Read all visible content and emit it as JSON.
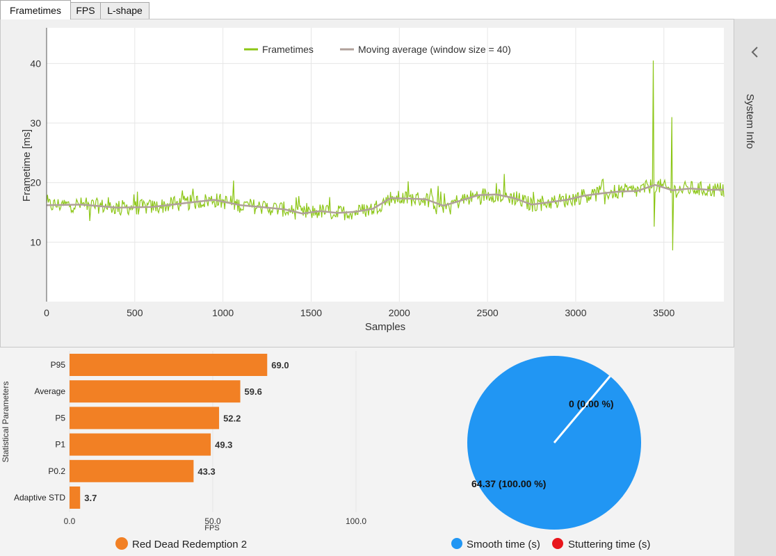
{
  "tabs": [
    {
      "label": "Frametimes",
      "active": true
    },
    {
      "label": "FPS",
      "active": false
    },
    {
      "label": "L-shape",
      "active": false
    }
  ],
  "sidebar": {
    "label": "System Info"
  },
  "frametime_chart": {
    "chart_data": {
      "type": "line",
      "xlabel": "Samples",
      "ylabel": "Frametime [ms]",
      "xlim": [
        0,
        3840
      ],
      "ylim": [
        0,
        46
      ],
      "x_ticks": [
        "0",
        "500",
        "1000",
        "1500",
        "2000",
        "2500",
        "3000",
        "3500"
      ],
      "x_tick_values": [
        0,
        500,
        1000,
        1500,
        2000,
        2500,
        3000,
        3500
      ],
      "y_ticks": [
        "10",
        "20",
        "30",
        "40"
      ],
      "y_tick_values": [
        10,
        20,
        30,
        40
      ],
      "legend": [
        {
          "name": "Frametimes",
          "color": "#8cc616"
        },
        {
          "name": "Moving average (window size = 40)",
          "color": "#b0a09a"
        }
      ],
      "moving_average": {
        "x": [
          0,
          200,
          400,
          600,
          800,
          950,
          1100,
          1250,
          1350,
          1450,
          1550,
          1650,
          1750,
          1850,
          1950,
          2050,
          2150,
          2250,
          2350,
          2450,
          2550,
          2650,
          2750,
          2850,
          2950,
          3050,
          3150,
          3250,
          3350,
          3450,
          3550,
          3650,
          3750,
          3840
        ],
        "y": [
          16.2,
          16.3,
          15.8,
          15.9,
          16.6,
          17.1,
          16.2,
          15.8,
          15.5,
          14.8,
          15.2,
          14.9,
          15.1,
          15.6,
          17.4,
          17.3,
          17.2,
          16.1,
          17.0,
          17.9,
          18.0,
          17.4,
          16.3,
          16.7,
          17.1,
          17.8,
          18.2,
          18.5,
          18.6,
          19.6,
          18.7,
          19.0,
          18.8,
          18.8
        ]
      },
      "spikes": [
        {
          "x": 3440,
          "y": 40.5
        },
        {
          "x": 3445,
          "y": 12.6
        },
        {
          "x": 3545,
          "y": 31.0
        },
        {
          "x": 3550,
          "y": 8.6
        }
      ]
    }
  },
  "stats_chart": {
    "chart_data": {
      "type": "bar",
      "orientation": "horizontal",
      "ylabel": "Statistical Parameters",
      "xlabel": "FPS",
      "xlim": [
        0,
        100
      ],
      "x_ticks": [
        "0.0",
        "50.0",
        "100.0"
      ],
      "x_tick_values": [
        0,
        50,
        100
      ],
      "categories": [
        "P95",
        "Average",
        "P5",
        "P1",
        "P0.2",
        "Adaptive STD"
      ],
      "values": [
        69.0,
        59.6,
        52.2,
        49.3,
        43.3,
        3.7
      ],
      "labels": [
        "69.0",
        "59.6",
        "52.2",
        "49.3",
        "43.3",
        "3.7"
      ],
      "color": "#f28024",
      "legend": [
        {
          "name": "Red Dead Redemption 2",
          "color": "#f28024"
        }
      ]
    }
  },
  "pie_chart": {
    "chart_data": {
      "type": "pie",
      "slices": [
        {
          "name": "Smooth time (s)",
          "value": 64.37,
          "label": "64.37 (100.00 %)",
          "color": "#2196f3"
        },
        {
          "name": "Stuttering time (s)",
          "value": 0,
          "label": "0 (0.00 %)",
          "color": "#e8151b"
        }
      ]
    }
  }
}
